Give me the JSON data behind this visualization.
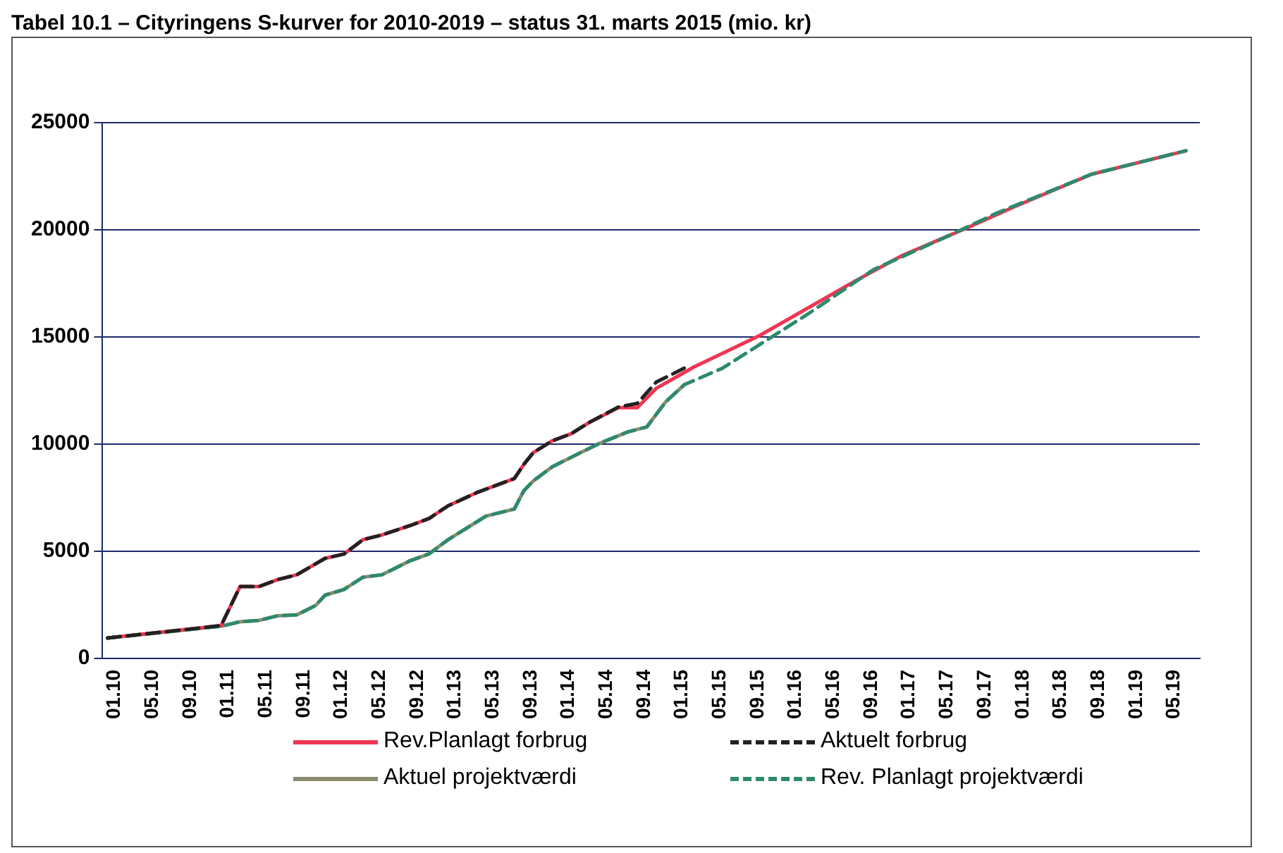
{
  "chart_data": {
    "type": "line",
    "title": "Tabel 10.1 – Cityringens S-kurver for 2010-2019 – status 31. marts 2015 (mio. kr)",
    "xlim": [
      "2009-12-15",
      "2019-08-15"
    ],
    "xticks": [
      {
        "value": "2010-01",
        "label": "01.10"
      },
      {
        "value": "2010-05",
        "label": "05.10"
      },
      {
        "value": "2010-09",
        "label": "09.10"
      },
      {
        "value": "2011-01",
        "label": "01.11"
      },
      {
        "value": "2011-05",
        "label": "05.11"
      },
      {
        "value": "2011-09",
        "label": "09.11"
      },
      {
        "value": "2012-01",
        "label": "01.12"
      },
      {
        "value": "2012-05",
        "label": "05.12"
      },
      {
        "value": "2012-09",
        "label": "09.12"
      },
      {
        "value": "2013-01",
        "label": "01.13"
      },
      {
        "value": "2013-05",
        "label": "05.13"
      },
      {
        "value": "2013-09",
        "label": "09.13"
      },
      {
        "value": "2014-01",
        "label": "01.14"
      },
      {
        "value": "2014-05",
        "label": "05.14"
      },
      {
        "value": "2014-09",
        "label": "09.14"
      },
      {
        "value": "2015-01",
        "label": "01.15"
      },
      {
        "value": "2015-05",
        "label": "05.15"
      },
      {
        "value": "2015-09",
        "label": "09.15"
      },
      {
        "value": "2016-01",
        "label": "01.16"
      },
      {
        "value": "2016-05",
        "label": "05.16"
      },
      {
        "value": "2016-09",
        "label": "09.16"
      },
      {
        "value": "2017-01",
        "label": "01.17"
      },
      {
        "value": "2017-05",
        "label": "05.17"
      },
      {
        "value": "2017-09",
        "label": "09.17"
      },
      {
        "value": "2018-01",
        "label": "01.18"
      },
      {
        "value": "2018-05",
        "label": "05.18"
      },
      {
        "value": "2018-09",
        "label": "09.18"
      },
      {
        "value": "2019-01",
        "label": "01.19"
      },
      {
        "value": "2019-05",
        "label": "05.19"
      }
    ],
    "ylim": [
      0,
      25000
    ],
    "yticks": [
      0,
      5000,
      10000,
      15000,
      20000,
      25000
    ],
    "grid": "y",
    "legend": "bottom",
    "marker": "none",
    "series": [
      {
        "name": "Rev.Planlagt forbrug",
        "color": "#ef3552",
        "line_style": "solid",
        "x": [
          "2010-01",
          "2011-01",
          "2011-03",
          "2011-05",
          "2011-07",
          "2011-09",
          "2011-12",
          "2012-02",
          "2012-04",
          "2012-06",
          "2012-09",
          "2012-11",
          "2013-01",
          "2013-04",
          "2013-06",
          "2013-08",
          "2013-09",
          "2013-10",
          "2013-12",
          "2014-02",
          "2014-04",
          "2014-07",
          "2014-09",
          "2014-11",
          "2015-01",
          "2015-03",
          "2015-10",
          "2016-08",
          "2017-01",
          "2017-08",
          "2018-01",
          "2018-09",
          "2019-07"
        ],
        "values": [
          950,
          1530,
          3350,
          3350,
          3680,
          3900,
          4670,
          4870,
          5540,
          5760,
          6200,
          6530,
          7120,
          7730,
          8060,
          8390,
          9050,
          9600,
          10150,
          10480,
          11030,
          11700,
          11700,
          12600,
          13100,
          13600,
          15080,
          17600,
          18800,
          20120,
          21100,
          22590,
          23690
        ]
      },
      {
        "name": "Aktuelt forbrug",
        "color": "#222222",
        "line_style": "dashed",
        "x": [
          "2010-01",
          "2011-01",
          "2011-03",
          "2011-05",
          "2011-07",
          "2011-09",
          "2011-12",
          "2012-02",
          "2012-04",
          "2012-06",
          "2012-09",
          "2012-11",
          "2013-01",
          "2013-04",
          "2013-06",
          "2013-08",
          "2013-09",
          "2013-10",
          "2013-12",
          "2014-02",
          "2014-04",
          "2014-07",
          "2014-09",
          "2014-11",
          "2015-02"
        ],
        "values": [
          950,
          1530,
          3350,
          3350,
          3680,
          3900,
          4670,
          4870,
          5540,
          5760,
          6200,
          6530,
          7120,
          7730,
          8060,
          8390,
          9050,
          9600,
          10150,
          10480,
          11030,
          11730,
          11900,
          12890,
          13550
        ]
      },
      {
        "name": "Aktuel projektværdi",
        "color": "#8c8a6e",
        "line_style": "solid",
        "x": [
          "2010-01",
          "2011-01",
          "2011-03",
          "2011-05",
          "2011-07",
          "2011-09",
          "2011-11",
          "2011-12",
          "2012-02",
          "2012-04",
          "2012-06",
          "2012-09",
          "2012-11",
          "2013-01",
          "2013-03",
          "2013-05",
          "2013-08",
          "2013-09",
          "2013-10",
          "2013-12",
          "2014-03",
          "2014-05",
          "2014-08",
          "2014-10",
          "2014-12",
          "2015-02"
        ],
        "values": [
          950,
          1500,
          1710,
          1770,
          1990,
          2030,
          2470,
          2950,
          3220,
          3790,
          3900,
          4560,
          4880,
          5540,
          6090,
          6640,
          6970,
          7820,
          8280,
          8940,
          9600,
          10030,
          10570,
          10800,
          11970,
          12780
        ]
      },
      {
        "name": "Rev. Planlagt projektværdi",
        "color": "#2e8a6c",
        "line_style": "dashed",
        "x": [
          "2010-01",
          "2011-01",
          "2011-03",
          "2011-05",
          "2011-07",
          "2011-09",
          "2011-11",
          "2011-12",
          "2012-02",
          "2012-04",
          "2012-06",
          "2012-09",
          "2012-11",
          "2013-01",
          "2013-03",
          "2013-05",
          "2013-08",
          "2013-09",
          "2013-10",
          "2013-12",
          "2014-03",
          "2014-05",
          "2014-08",
          "2014-10",
          "2014-12",
          "2015-02",
          "2015-06",
          "2016-03",
          "2016-10",
          "2017-06",
          "2017-11",
          "2018-09",
          "2019-07"
        ],
        "values": [
          950,
          1500,
          1710,
          1770,
          1990,
          2030,
          2470,
          2950,
          3220,
          3790,
          3900,
          4560,
          4880,
          5540,
          6090,
          6640,
          6970,
          7820,
          8280,
          8940,
          9600,
          10030,
          10570,
          10800,
          11970,
          12780,
          13540,
          16060,
          18150,
          19740,
          20780,
          22590,
          23690
        ]
      }
    ]
  }
}
